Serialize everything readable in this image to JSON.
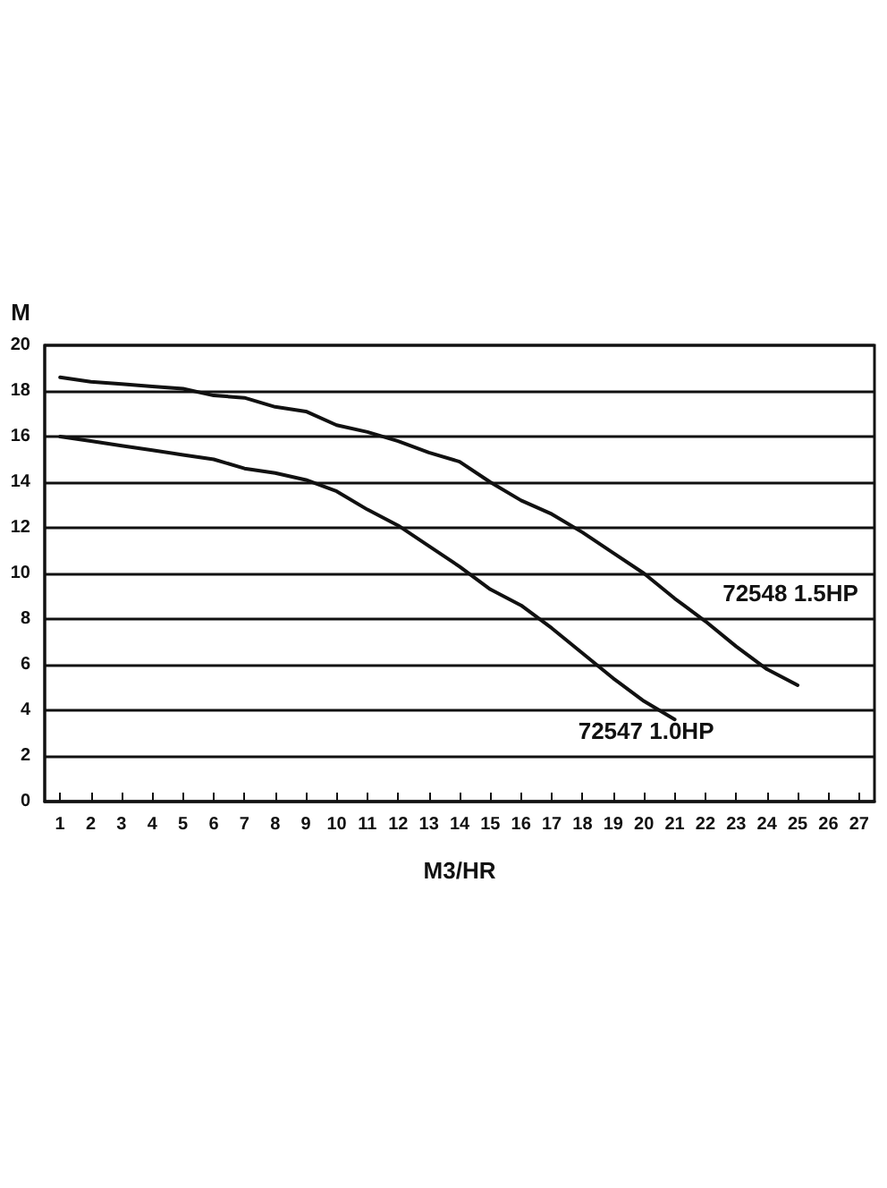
{
  "chart_data": {
    "type": "line",
    "xlabel": "M3/HR",
    "ylabel": "M",
    "x": [
      1,
      2,
      3,
      4,
      5,
      6,
      7,
      8,
      9,
      10,
      11,
      12,
      13,
      14,
      15,
      16,
      17,
      18,
      19,
      20,
      21,
      22,
      23,
      24,
      25
    ],
    "series": [
      {
        "name": "72548 1.5HP",
        "color": "#111111",
        "values": [
          18.6,
          18.4,
          18.3,
          18.2,
          18.1,
          17.8,
          17.7,
          17.3,
          17.1,
          16.5,
          16.2,
          15.8,
          15.3,
          14.9,
          14.0,
          13.2,
          12.6,
          11.8,
          10.9,
          10.0,
          8.9,
          7.9,
          6.8,
          5.8,
          5.1
        ]
      },
      {
        "name": "72547 1.0HP",
        "color": "#111111",
        "values": [
          16.0,
          15.8,
          15.6,
          15.4,
          15.2,
          15.0,
          14.6,
          14.4,
          14.1,
          13.6,
          12.8,
          12.1,
          11.2,
          10.3,
          9.3,
          8.6,
          7.6,
          6.5,
          5.4,
          4.4,
          3.6,
          null,
          null,
          null,
          null
        ]
      }
    ],
    "xlim": [
      0.5,
      27.5
    ],
    "xticks": [
      1,
      2,
      3,
      4,
      5,
      6,
      7,
      8,
      9,
      10,
      11,
      12,
      13,
      14,
      15,
      16,
      17,
      18,
      19,
      20,
      21,
      22,
      23,
      24,
      25,
      26,
      27
    ],
    "ylim": [
      0,
      20
    ],
    "yticks": [
      0,
      2,
      4,
      6,
      8,
      10,
      12,
      14,
      16,
      18,
      20
    ],
    "grid": "y",
    "legend": false,
    "marker": "none",
    "line_style": "solid"
  }
}
